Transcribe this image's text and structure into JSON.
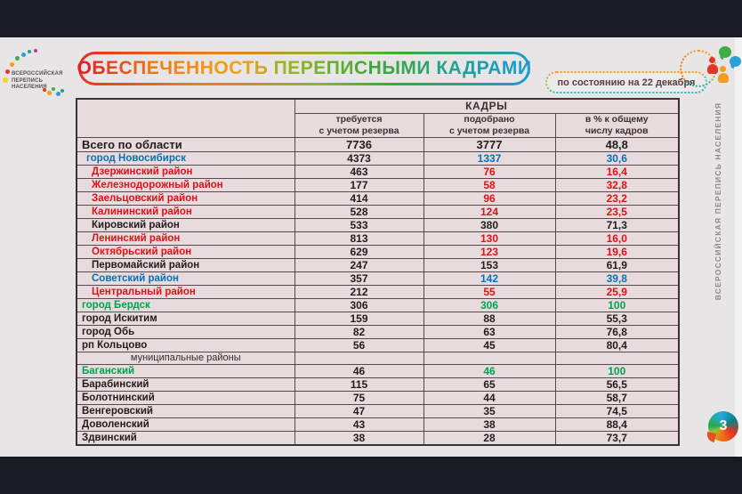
{
  "colors": {
    "red": "#e01117",
    "blue": "#0a6fb4",
    "green": "#00a44e",
    "black": "#241b1c",
    "title_gradient": [
      "#e31e25",
      "#f07f13",
      "#f0a219",
      "#8db526",
      "#3fa63c",
      "#21a38d",
      "#1d9ad6"
    ],
    "palette_dots": [
      "#e63323",
      "#f59b1e",
      "#3fae49",
      "#2a9fd8",
      "#19a08c",
      "#f5d327",
      "#c9368f"
    ]
  },
  "header": {
    "title": "ОБЕСПЕЧЕННОСТЬ ПЕРЕПИСНЫМИ КАДРАМИ",
    "badge": "по состоянию на 22 декабря"
  },
  "brand": {
    "left_lines": [
      "ВСЕРОССИЙСКАЯ",
      "ПЕРЕПИСЬ",
      "НАСЕЛЕНИЯ"
    ],
    "right_vertical": "ВСЕРОССИЙСКАЯ ПЕРЕПИСЬ НАСЕЛЕНИЯ"
  },
  "page": {
    "number": "3"
  },
  "table": {
    "group_header": "КАДРЫ",
    "columns": [
      {
        "line1": "требуется",
        "line2": "с учетом резерва"
      },
      {
        "line1": "подобрано",
        "line2": "с учетом резерва"
      },
      {
        "line1": "в % к общему",
        "line2": "числу кадров"
      }
    ],
    "rows": [
      {
        "name": "Всего по области",
        "color": "black",
        "indent": 0,
        "total": true,
        "required": "7736",
        "selected": "3777",
        "percent": "48,8"
      },
      {
        "name": "город Новосибирск",
        "color": "blue",
        "indent": 1,
        "required": "4373",
        "selected": "1337",
        "percent": "30,6"
      },
      {
        "name": "Дзержинский район",
        "color": "red",
        "indent": 2,
        "required": "463",
        "selected": "76",
        "percent": "16,4"
      },
      {
        "name": "Железнодорожный район",
        "color": "red",
        "indent": 2,
        "required": "177",
        "selected": "58",
        "percent": "32,8"
      },
      {
        "name": "Заельцовский район",
        "color": "red",
        "indent": 2,
        "required": "414",
        "selected": "96",
        "percent": "23,2"
      },
      {
        "name": "Калининский район",
        "color": "red",
        "indent": 2,
        "required": "528",
        "selected": "124",
        "percent": "23,5"
      },
      {
        "name": "Кировский район",
        "color": "black",
        "indent": 2,
        "required": "533",
        "selected": "380",
        "percent": "71,3"
      },
      {
        "name": "Ленинский район",
        "color": "red",
        "indent": 2,
        "required": "813",
        "selected": "130",
        "percent": "16,0"
      },
      {
        "name": "Октябрьский район",
        "color": "red",
        "indent": 2,
        "required": "629",
        "selected": "123",
        "percent": "19,6"
      },
      {
        "name": "Первомайский район",
        "color": "black",
        "indent": 2,
        "required": "247",
        "selected": "153",
        "percent": "61,9"
      },
      {
        "name": "Советский район",
        "color": "blue",
        "indent": 2,
        "required": "357",
        "selected": "142",
        "percent": "39,8"
      },
      {
        "name": "Центральный район",
        "color": "red",
        "indent": 2,
        "required": "212",
        "selected": "55",
        "percent": "25,9"
      },
      {
        "name": "город Бердск",
        "color": "green",
        "indent": 0,
        "required": "306",
        "selected": "306",
        "percent": "100"
      },
      {
        "name": "город Искитим",
        "color": "black",
        "indent": 0,
        "required": "159",
        "selected": "88",
        "percent": "55,3"
      },
      {
        "name": "город Обь",
        "color": "black",
        "indent": 0,
        "required": "82",
        "selected": "63",
        "percent": "76,8"
      },
      {
        "name": "рп Кольцово",
        "color": "black",
        "indent": 0,
        "required": "56",
        "selected": "45",
        "percent": "80,4"
      },
      {
        "name": "муниципальные районы",
        "color": "black",
        "section": true,
        "required": "",
        "selected": "",
        "percent": ""
      },
      {
        "name": "Баганский",
        "color": "green",
        "indent": 0,
        "required": "46",
        "selected": "46",
        "percent": "100"
      },
      {
        "name": "Барабинский",
        "color": "black",
        "indent": 0,
        "required": "115",
        "selected": "65",
        "percent": "56,5"
      },
      {
        "name": "Болотнинский",
        "color": "black",
        "indent": 0,
        "required": "75",
        "selected": "44",
        "percent": "58,7"
      },
      {
        "name": "Венгеровский",
        "color": "black",
        "indent": 0,
        "required": "47",
        "selected": "35",
        "percent": "74,5"
      },
      {
        "name": "Доволенский",
        "color": "black",
        "indent": 0,
        "required": "43",
        "selected": "38",
        "percent": "88,4"
      },
      {
        "name": "Здвинский",
        "color": "black",
        "indent": 0,
        "required": "38",
        "selected": "28",
        "percent": "73,7"
      }
    ]
  }
}
